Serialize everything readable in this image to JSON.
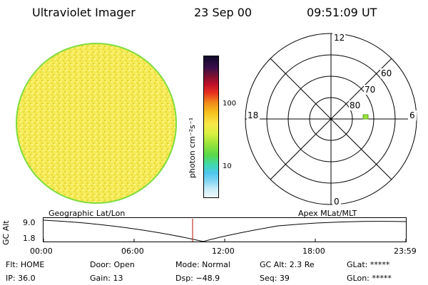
{
  "header": {
    "title": "Ultraviolet Imager",
    "date": "23 Sep 00",
    "time": "09:51:09 UT"
  },
  "colorbar": {
    "unit": "photon cm⁻²s⁻¹",
    "tick_100": "100",
    "tick_10": "10"
  },
  "polar": {
    "lat_labels": [
      "80",
      "70",
      "60"
    ],
    "mlt_top": "12",
    "mlt_left": "18",
    "mlt_right": "6",
    "mlt_bottom": "0"
  },
  "altitude_plot": {
    "ylabel": "GC Alt",
    "y_ticks": [
      "9.0",
      "1.8"
    ],
    "left_caption": "Geographic Lat/Lon",
    "right_caption": "Apex MLat/MLT",
    "x_ticks": [
      "00:00",
      "06:00",
      "12:00",
      "18:00",
      "23:59"
    ]
  },
  "info": {
    "flt": "Flt: HOME",
    "ip": "IP: 36.0",
    "door": "Door: Open",
    "gain": "Gain: 13",
    "mode": "Mode: Normal",
    "dsp": "Dsp:  −48.9",
    "gcalt": "GC Alt: 2.3 Re",
    "seq": "Seq: 39",
    "glat": "GLat: *****",
    "glon": "GLon: *****"
  },
  "colors": {
    "disk_fill": "#f3e94a",
    "disk_edge": "#7fdc3c",
    "time_marker": "#c0392b"
  }
}
